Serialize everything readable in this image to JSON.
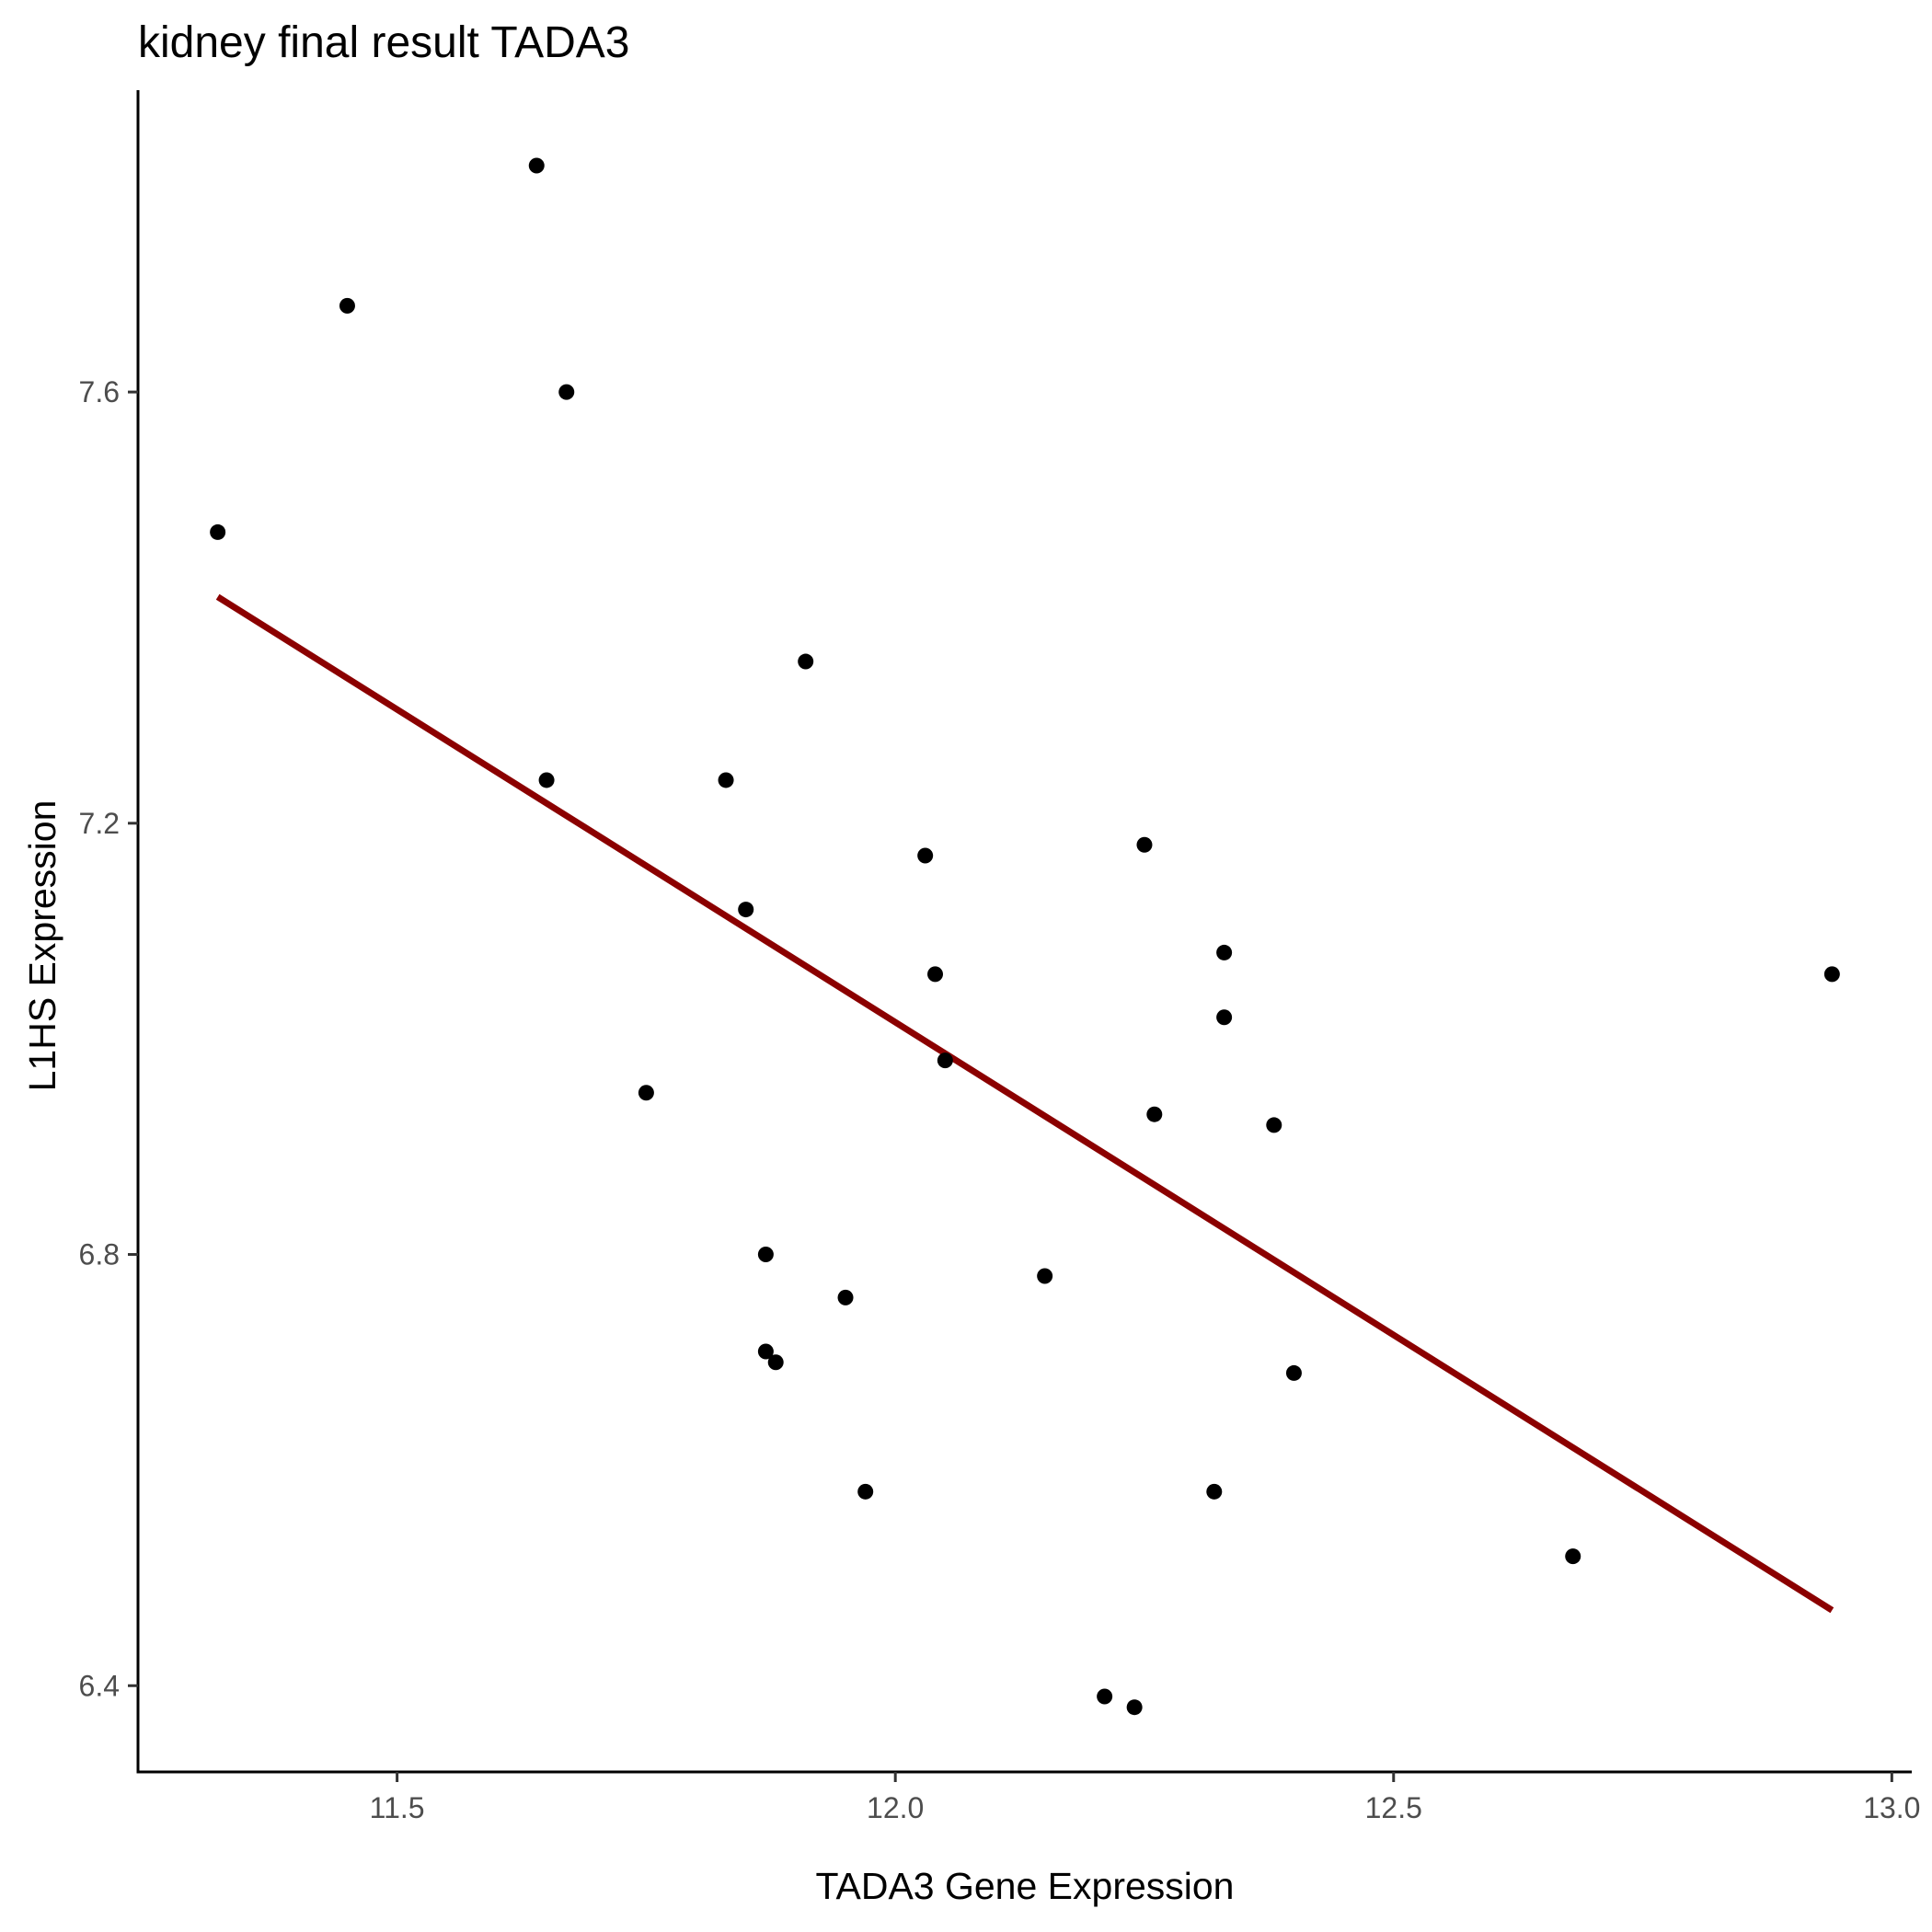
{
  "chart_data": {
    "type": "scatter",
    "title": "kidney final result TADA3",
    "xlabel": "TADA3 Gene Expression",
    "ylabel": "L1HS Expression",
    "xlim": [
      11.24,
      13.02
    ],
    "ylim": [
      6.32,
      7.88
    ],
    "x_ticks": [
      11.5,
      12.0,
      12.5,
      13.0
    ],
    "x_tick_labels": [
      "11.5",
      "12.0",
      "12.5",
      "13.0"
    ],
    "y_ticks": [
      6.4,
      6.8,
      7.2,
      7.6
    ],
    "y_tick_labels": [
      "6.4",
      "6.8",
      "7.2",
      "7.6"
    ],
    "grid": false,
    "legend": "none",
    "point_color": "#000000",
    "fit_color": "#8b0000",
    "points": [
      {
        "x": 11.32,
        "y": 7.47
      },
      {
        "x": 11.45,
        "y": 7.68
      },
      {
        "x": 11.64,
        "y": 7.81
      },
      {
        "x": 11.67,
        "y": 7.6
      },
      {
        "x": 11.65,
        "y": 7.24
      },
      {
        "x": 11.75,
        "y": 6.95
      },
      {
        "x": 11.83,
        "y": 7.24
      },
      {
        "x": 11.85,
        "y": 7.12
      },
      {
        "x": 11.87,
        "y": 6.71
      },
      {
        "x": 11.87,
        "y": 6.8
      },
      {
        "x": 11.88,
        "y": 6.7
      },
      {
        "x": 11.91,
        "y": 7.35
      },
      {
        "x": 11.95,
        "y": 6.76
      },
      {
        "x": 11.97,
        "y": 6.58
      },
      {
        "x": 12.03,
        "y": 7.17
      },
      {
        "x": 12.04,
        "y": 7.06
      },
      {
        "x": 12.05,
        "y": 6.98
      },
      {
        "x": 12.15,
        "y": 6.78
      },
      {
        "x": 12.21,
        "y": 6.39
      },
      {
        "x": 12.24,
        "y": 6.38
      },
      {
        "x": 12.25,
        "y": 7.18
      },
      {
        "x": 12.26,
        "y": 6.93
      },
      {
        "x": 12.32,
        "y": 6.58
      },
      {
        "x": 12.33,
        "y": 7.02
      },
      {
        "x": 12.33,
        "y": 7.08
      },
      {
        "x": 12.38,
        "y": 6.92
      },
      {
        "x": 12.4,
        "y": 6.69
      },
      {
        "x": 12.68,
        "y": 6.52
      },
      {
        "x": 12.94,
        "y": 7.06
      }
    ],
    "fit_line": {
      "x": [
        11.32,
        12.94
      ],
      "y": [
        7.41,
        6.47
      ]
    }
  }
}
